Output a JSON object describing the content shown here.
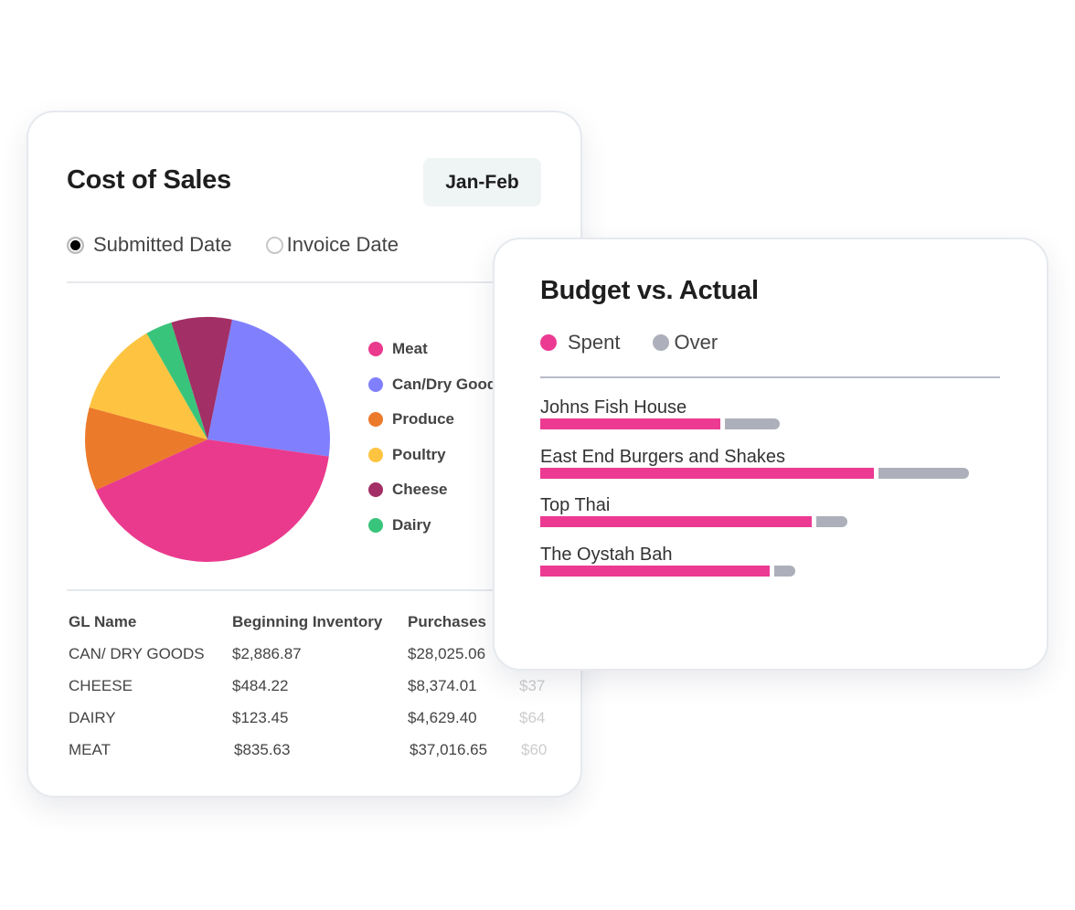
{
  "cost_of_sales": {
    "title": "Cost of Sales",
    "period": "Jan-Feb",
    "radios": [
      {
        "label": "Submitted Date",
        "selected": true
      },
      {
        "label": "Invoice Date",
        "selected": false
      }
    ],
    "table": {
      "headers": [
        "GL Name",
        "Beginning Inventory",
        "Purchases"
      ],
      "rows": [
        [
          "CAN/ DRY GOODS",
          "$2,886.87",
          "$28,025.06",
          ""
        ],
        [
          "CHEESE",
          "$484.22",
          "$8,374.01",
          "$37"
        ],
        [
          "DAIRY",
          "$123.45",
          "$4,629.40",
          "$64"
        ],
        [
          "MEAT",
          "$835.63",
          "$37,016.65",
          "$60"
        ]
      ]
    }
  },
  "chart_data": [
    {
      "type": "pie",
      "title": "Cost of Sales",
      "start_angle_deg": 11.6,
      "slices": [
        {
          "label": "Can/Dry Goods",
          "legend_label": "Can/Dry Good",
          "value": 24,
          "color": "#8080ff"
        },
        {
          "label": "Meat",
          "legend_label": "Meat",
          "value": 41,
          "color": "#ea3a8d"
        },
        {
          "label": "Produce",
          "legend_label": "Produce",
          "value": 11,
          "color": "#eb7a2a"
        },
        {
          "label": "Poultry",
          "legend_label": "Poultry",
          "value": 12.5,
          "color": "#fec441"
        },
        {
          "label": "Dairy",
          "legend_label": "Dairy",
          "value": 3.5,
          "color": "#39c47b"
        },
        {
          "label": "Cheese",
          "legend_label": "Cheese",
          "value": 8,
          "color": "#a22f65"
        }
      ],
      "legend_order": [
        1,
        0,
        2,
        3,
        5,
        4
      ]
    },
    {
      "type": "bar",
      "orientation": "horizontal",
      "stacked": true,
      "title": "Budget vs. Actual",
      "xlim": [
        0,
        100
      ],
      "categories": [
        "Johns Fish House",
        "East End Burgers and Shakes",
        "Top Thai",
        "The Oystah Bah"
      ],
      "series": [
        {
          "name": "Spent",
          "color": "#ec3a93",
          "values": [
            39.2,
            72.7,
            59.2,
            50.0
          ]
        },
        {
          "name": "Over",
          "color": "#adb0ba",
          "values": [
            12.0,
            19.7,
            6.8,
            4.6
          ]
        }
      ]
    }
  ]
}
